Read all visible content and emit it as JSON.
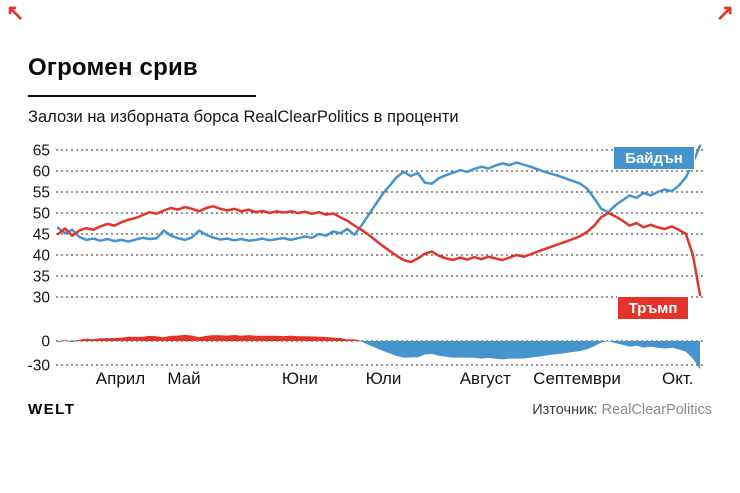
{
  "header": {
    "title": "Огромен срив",
    "subtitle": "Залози на изборната борса RealClearPolitics в проценти"
  },
  "icons": {
    "arrow_top_left": "↖",
    "arrow_top_right": "↗"
  },
  "branding": {
    "logo": "WELT"
  },
  "source": {
    "label": "Източник:",
    "value": "RealClearPolitics"
  },
  "chart_data": {
    "type": "line",
    "title": "Огромен срив",
    "subtitle": "Залози на изборната борса RealClearPolitics в проценти",
    "x": {
      "start": 0,
      "step": 0.07,
      "unit": "months since 1 April 2020"
    },
    "x_labels": [
      {
        "label": "Април",
        "t": 0.62
      },
      {
        "label": "Май",
        "t": 1.25
      },
      {
        "label": "Юни",
        "t": 2.4
      },
      {
        "label": "Юли",
        "t": 3.23
      },
      {
        "label": "Август",
        "t": 4.24
      },
      {
        "label": "Септември",
        "t": 5.15
      },
      {
        "label": "Окт.",
        "t": 6.15
      }
    ],
    "y_axis": {
      "ticks": [
        65,
        60,
        55,
        50,
        45,
        40,
        35,
        30
      ],
      "range": [
        28,
        67
      ]
    },
    "margin_axis": {
      "ticks": [
        0,
        -30
      ],
      "series": "trump_minus_biden"
    },
    "grid": "dashed",
    "legend_position": "right-inside",
    "series": [
      {
        "id": "biden",
        "name": "Байдън",
        "color": "#4694cd",
        "values": [
          46.5,
          45.2,
          46.0,
          44.3,
          43.6,
          43.9,
          43.4,
          43.8,
          43.3,
          43.6,
          43.2,
          43.7,
          44.1,
          43.8,
          44.0,
          45.8,
          44.6,
          44.0,
          43.6,
          44.2,
          45.8,
          44.8,
          44.2,
          43.7,
          43.9,
          43.5,
          43.8,
          43.4,
          43.6,
          43.9,
          43.5,
          43.8,
          44.0,
          43.6,
          44.0,
          44.4,
          44.1,
          45.0,
          44.6,
          45.6,
          45.2,
          46.2,
          44.8,
          47.0,
          49.5,
          52.0,
          54.5,
          56.5,
          58.5,
          59.8,
          58.8,
          59.5,
          57.2,
          57.0,
          58.3,
          59.0,
          59.6,
          60.2,
          59.8,
          60.5,
          61.0,
          60.6,
          61.3,
          61.8,
          61.4,
          62.0,
          61.5,
          61.0,
          60.4,
          59.8,
          59.3,
          58.8,
          58.2,
          57.6,
          57.0,
          55.8,
          53.5,
          51.0,
          50.2,
          51.8,
          53.0,
          54.2,
          53.6,
          54.8,
          54.2,
          55.0,
          55.6,
          55.2,
          56.5,
          58.5,
          62.0,
          66.0
        ]
      },
      {
        "id": "trump",
        "name": "Тръмп",
        "color": "#e5332a",
        "values": [
          45.0,
          46.3,
          44.6,
          45.8,
          46.4,
          46.0,
          46.8,
          47.4,
          47.0,
          47.8,
          48.4,
          48.8,
          49.5,
          50.2,
          49.8,
          50.6,
          51.2,
          50.8,
          51.4,
          51.0,
          50.4,
          51.2,
          51.6,
          51.0,
          50.6,
          51.0,
          50.4,
          50.8,
          50.2,
          50.5,
          50.0,
          50.4,
          50.1,
          50.4,
          50.0,
          50.3,
          49.8,
          50.2,
          49.6,
          49.9,
          49.0,
          48.2,
          47.0,
          46.0,
          44.8,
          43.5,
          42.2,
          41.0,
          39.8,
          38.8,
          38.3,
          39.2,
          40.3,
          40.8,
          39.8,
          39.2,
          38.8,
          39.4,
          38.9,
          39.5,
          39.0,
          39.6,
          39.2,
          38.8,
          39.4,
          40.0,
          39.6,
          40.2,
          40.8,
          41.4,
          42.0,
          42.6,
          43.2,
          43.8,
          44.5,
          45.5,
          47.0,
          49.0,
          50.0,
          49.2,
          48.2,
          47.0,
          47.6,
          46.6,
          47.2,
          46.6,
          46.2,
          46.8,
          46.0,
          45.0,
          40.0,
          30.5
        ]
      }
    ]
  }
}
